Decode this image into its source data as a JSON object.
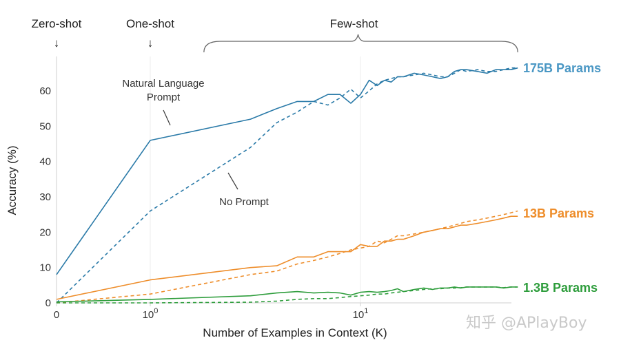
{
  "chart_data": {
    "type": "line",
    "xlabel": "Number of Examples in Context  (K)",
    "ylabel": "Accuracy (%)",
    "x_scale": "symlog",
    "xlim": [
      0,
      56
    ],
    "ylim": [
      0,
      68
    ],
    "y_ticks": [
      0,
      10,
      20,
      30,
      40,
      50,
      60
    ],
    "x_ticks": [
      {
        "value": 0,
        "label": "0"
      },
      {
        "value": 1,
        "label": "10",
        "exp": "0"
      },
      {
        "value": 10,
        "label": "10",
        "exp": "1"
      }
    ],
    "regions": [
      {
        "label": "Zero-shot",
        "at": 0,
        "marker": "↓"
      },
      {
        "label": "One-shot",
        "at": 1,
        "marker": "↓"
      },
      {
        "label": "Few-shot",
        "from": 1.8,
        "to": 56
      }
    ],
    "annotations": [
      {
        "text": [
          "Natural Language",
          "Prompt"
        ],
        "points_to_series": "175B Params",
        "points_to_style": "solid"
      },
      {
        "text": [
          "No Prompt"
        ],
        "points_to_series": "175B Params",
        "points_to_style": "dashed"
      }
    ],
    "grid": "vertical",
    "legend": "direct labels at right",
    "series": [
      {
        "name": "175B Params",
        "color": "#2a7aa8",
        "label_color": "#4a97c4",
        "natural_language_prompt": {
          "style": "solid",
          "x": [
            0,
            1,
            3,
            4,
            5,
            6,
            7,
            8,
            9,
            10,
            11,
            12,
            13,
            14,
            15,
            16,
            18,
            20,
            22,
            24,
            26,
            28,
            30,
            32,
            36,
            40,
            44,
            48,
            52,
            56
          ],
          "y": [
            8,
            46,
            52,
            55,
            57,
            57,
            59,
            59,
            56.5,
            59,
            63,
            61.5,
            63,
            62.5,
            64,
            64,
            65,
            64.5,
            64,
            63.5,
            64,
            65.5,
            66,
            66,
            65.5,
            65,
            66,
            66,
            66,
            66.5
          ]
        },
        "no_prompt": {
          "style": "dashed",
          "x": [
            0,
            1,
            3,
            4,
            5,
            6,
            7,
            8,
            9,
            10,
            11,
            12,
            13,
            14,
            15,
            16,
            18,
            20,
            22,
            24,
            26,
            28,
            30,
            32,
            36,
            40,
            44,
            48,
            52,
            56
          ],
          "y": [
            0,
            26,
            44,
            51,
            54,
            57,
            56,
            58,
            60.5,
            58,
            60,
            62,
            63,
            63.5,
            64,
            64,
            64.5,
            65,
            64.5,
            64,
            64,
            65,
            66,
            65.5,
            66,
            65.5,
            65.5,
            66,
            66.5,
            66.5
          ]
        }
      },
      {
        "name": "13B Params",
        "color": "#ee8d2a",
        "label_color": "#ee8d2a",
        "natural_language_prompt": {
          "style": "solid",
          "x": [
            0,
            1,
            3,
            4,
            5,
            6,
            7,
            8,
            9,
            10,
            11,
            12,
            13,
            14,
            15,
            16,
            18,
            20,
            22,
            24,
            26,
            28,
            30,
            32,
            36,
            40,
            44,
            48,
            52,
            56
          ],
          "y": [
            1,
            6.5,
            10,
            10.5,
            13,
            13,
            14.5,
            14.5,
            14.5,
            16.5,
            16,
            16,
            17.5,
            17.5,
            18,
            18,
            19,
            20,
            20.5,
            21,
            21,
            21.5,
            22,
            22,
            22.5,
            23,
            23.5,
            24,
            24.5,
            24.5
          ]
        },
        "no_prompt": {
          "style": "dashed",
          "x": [
            0,
            1,
            3,
            4,
            5,
            6,
            7,
            8,
            9,
            10,
            11,
            12,
            13,
            14,
            15,
            16,
            18,
            20,
            22,
            24,
            26,
            28,
            30,
            32,
            36,
            40,
            44,
            48,
            52,
            56
          ],
          "y": [
            0,
            2.5,
            8,
            9,
            11,
            12,
            13,
            14,
            15,
            15.5,
            16,
            17.5,
            17,
            18,
            19,
            19,
            19.5,
            20,
            20.5,
            21,
            21.5,
            22,
            22.5,
            23,
            23.5,
            24,
            24.5,
            25,
            25.5,
            26
          ]
        }
      },
      {
        "name": "1.3B Params",
        "color": "#2e9d3c",
        "label_color": "#2e9d3c",
        "natural_language_prompt": {
          "style": "solid",
          "x": [
            0,
            1,
            3,
            4,
            5,
            6,
            7,
            8,
            9,
            10,
            11,
            12,
            13,
            14,
            15,
            16,
            18,
            20,
            22,
            24,
            26,
            28,
            30,
            32,
            36,
            40,
            44,
            48,
            52,
            56
          ],
          "y": [
            0.3,
            1,
            2,
            2.8,
            3.2,
            2.8,
            3,
            2.8,
            2.2,
            3,
            3.2,
            3,
            3.2,
            3.5,
            4,
            3.2,
            3.8,
            4.2,
            3.8,
            4.2,
            4.2,
            4.5,
            4.2,
            4.5,
            4.5,
            4.5,
            4.5,
            4.2,
            4.5,
            4.5
          ]
        },
        "no_prompt": {
          "style": "dashed",
          "x": [
            0,
            1,
            3,
            4,
            5,
            6,
            7,
            8,
            9,
            10,
            11,
            12,
            13,
            14,
            15,
            16,
            18,
            20,
            22,
            24,
            26,
            28,
            30,
            32,
            36,
            40,
            44,
            48,
            52,
            56
          ],
          "y": [
            0,
            0,
            0.2,
            0.5,
            1,
            1.2,
            1.2,
            1.5,
            1.8,
            2,
            2.2,
            2.5,
            2.5,
            2.8,
            3,
            3.2,
            3.5,
            3.8,
            4,
            4,
            4.2,
            4.2,
            4.3,
            4.5,
            4.5,
            4.5,
            4.5,
            4.3,
            4.5,
            4.5
          ]
        }
      }
    ]
  },
  "watermark": "知乎 @APlayBoy"
}
